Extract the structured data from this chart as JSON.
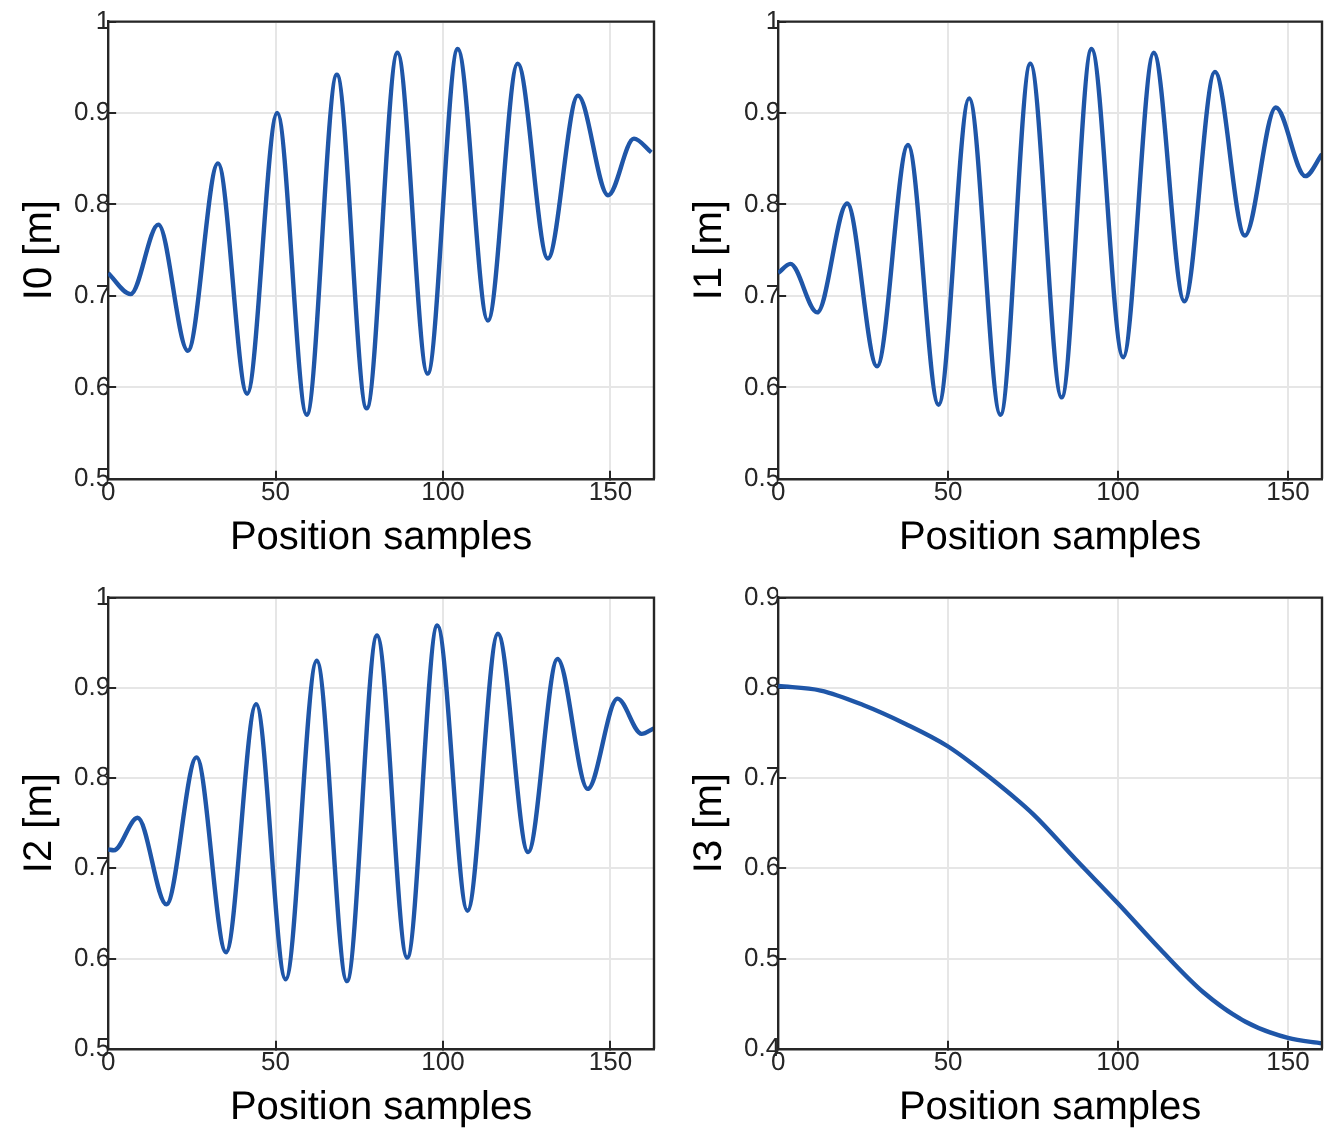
{
  "chart_data": [
    {
      "type": "line",
      "xlabel": "Position samples",
      "ylabel": "I0 [m]",
      "xlim": [
        0,
        163
      ],
      "xticks": [
        0,
        50,
        100,
        150
      ],
      "ylim": [
        0.5,
        1
      ],
      "yticks": [
        0.5,
        0.6,
        0.7,
        0.8,
        0.9,
        1
      ],
      "grid": true,
      "marker": "none",
      "line_style": "solid",
      "x": [
        0,
        6.7,
        15,
        23.8,
        32.8,
        41.5,
        50.5,
        59.3,
        68.3,
        77.2,
        86.4,
        95.4,
        104.4,
        113.4,
        122.3,
        131.3,
        140.3,
        149.3,
        157,
        162.2
      ],
      "series": [
        {
          "color": "#1f56a8",
          "values": [
            0.725,
            0.702,
            0.778,
            0.64,
            0.845,
            0.593,
            0.9,
            0.57,
            0.942,
            0.577,
            0.966,
            0.615,
            0.97,
            0.673,
            0.954,
            0.741,
            0.919,
            0.81,
            0.872,
            0.857
          ]
        }
      ]
    },
    {
      "type": "line",
      "xlabel": "Position samples",
      "ylabel": "I1 [m]",
      "xlim": [
        0,
        160
      ],
      "xticks": [
        0,
        50,
        100,
        150
      ],
      "ylim": [
        0.5,
        1
      ],
      "yticks": [
        0.5,
        0.6,
        0.7,
        0.8,
        0.9,
        1
      ],
      "grid": true,
      "marker": "none",
      "line_style": "solid",
      "x": [
        0,
        3.6,
        11.5,
        20.3,
        29.1,
        38.2,
        47.2,
        56.2,
        65.4,
        74.2,
        83.4,
        92.2,
        101.5,
        110.5,
        119.5,
        128.5,
        137.3,
        146.4,
        155.1,
        160
      ],
      "series": [
        {
          "color": "#1f56a8",
          "values": [
            0.725,
            0.735,
            0.682,
            0.801,
            0.623,
            0.865,
            0.581,
            0.916,
            0.57,
            0.954,
            0.589,
            0.97,
            0.633,
            0.966,
            0.694,
            0.945,
            0.766,
            0.906,
            0.831,
            0.855
          ]
        }
      ]
    },
    {
      "type": "line",
      "xlabel": "Position samples",
      "ylabel": "I2 [m]",
      "xlim": [
        0,
        163
      ],
      "xticks": [
        0,
        50,
        100,
        150
      ],
      "ylim": [
        0.5,
        1
      ],
      "yticks": [
        0.5,
        0.6,
        0.7,
        0.8,
        0.9,
        1
      ],
      "grid": true,
      "marker": "none",
      "line_style": "solid",
      "x": [
        0,
        1.7,
        8.8,
        17.4,
        26.4,
        35.2,
        44.2,
        53,
        62.3,
        71.3,
        80.3,
        89.3,
        98.3,
        107.3,
        116.4,
        125.4,
        134.2,
        143.2,
        152.1,
        159.3,
        162.9
      ],
      "series": [
        {
          "color": "#1f56a8",
          "values": [
            0.721,
            0.72,
            0.756,
            0.66,
            0.823,
            0.607,
            0.882,
            0.577,
            0.93,
            0.575,
            0.958,
            0.601,
            0.969,
            0.653,
            0.96,
            0.718,
            0.932,
            0.788,
            0.888,
            0.849,
            0.855
          ]
        }
      ]
    },
    {
      "type": "line",
      "xlabel": "Position samples",
      "ylabel": "I3 [m]",
      "xlim": [
        0,
        160
      ],
      "xticks": [
        0,
        50,
        100,
        150
      ],
      "ylim": [
        0.4,
        0.9
      ],
      "yticks": [
        0.4,
        0.5,
        0.6,
        0.7,
        0.8,
        0.9
      ],
      "grid": true,
      "marker": "none",
      "line_style": "solid",
      "x": [
        0,
        12.5,
        25,
        37.5,
        50,
        62.5,
        75,
        87.5,
        100,
        112.5,
        125,
        137.5,
        150,
        160
      ],
      "series": [
        {
          "color": "#1f56a8",
          "values": [
            0.802,
            0.797,
            0.781,
            0.76,
            0.735,
            0.7,
            0.66,
            0.61,
            0.561,
            0.51,
            0.463,
            0.43,
            0.412,
            0.406
          ]
        }
      ]
    }
  ]
}
